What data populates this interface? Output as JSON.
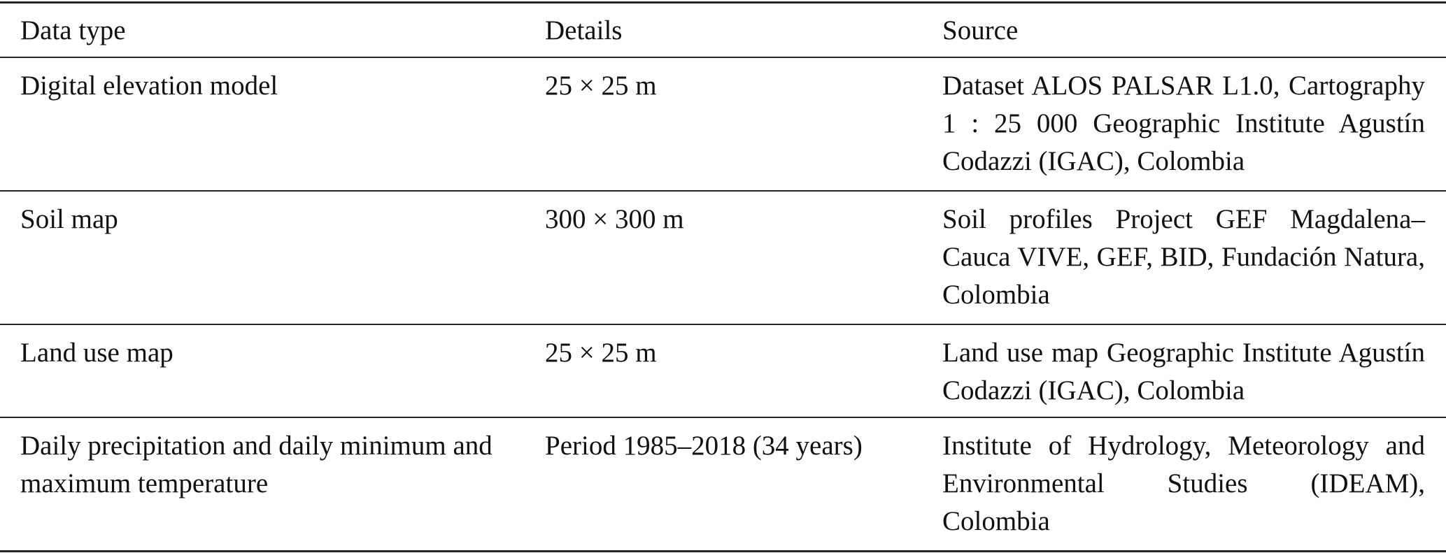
{
  "table": {
    "header": [
      "Data type",
      "Details",
      "Source"
    ],
    "rows": [
      [
        "Digital elevation model",
        "25 × 25 m",
        "Dataset ALOS PALSAR L1.0, Cartography 1 : 25 000 Geographic Institute Agustín Codazzi (IGAC), Colombia"
      ],
      [
        "Soil map",
        "300 × 300 m",
        "Soil profiles Project GEF Magdalena–Cauca VIVE, GEF, BID, Fundación Natura, Colombia"
      ],
      [
        "Land use map",
        "25 × 25 m",
        "Land use map Geographic Institute Agustín Codazzi (IGAC), Colombia"
      ],
      [
        "Daily precipitation and daily minimum and maximum temperature",
        "Period 1985–2018 (34 years)",
        "Institute of Hydrology, Meteorology and Environmental Studies (IDEAM), Colombia"
      ]
    ]
  }
}
